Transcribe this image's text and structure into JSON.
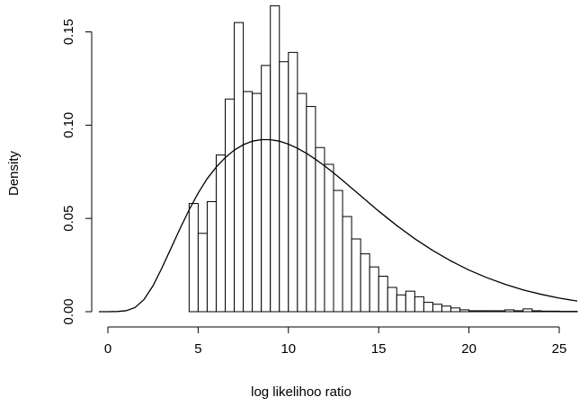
{
  "chart_data": {
    "type": "bar",
    "title": "",
    "xlabel": "log likelihoo ratio",
    "ylabel": "Density",
    "xlim": [
      -1,
      26
    ],
    "ylim": [
      0,
      0.16
    ],
    "xticks": [
      0,
      5,
      10,
      15,
      20,
      25
    ],
    "yticks": [
      0.0,
      0.05,
      0.1,
      0.15
    ],
    "ytick_labels": [
      "0.00",
      "0.05",
      "0.10",
      "0.15"
    ],
    "grid": false,
    "histogram": {
      "bin_width": 0.5,
      "bins_start": [
        4.5,
        5.0,
        5.5,
        6.0,
        6.5,
        7.0,
        7.5,
        8.0,
        8.5,
        9.0,
        9.5,
        10.0,
        10.5,
        11.0,
        11.5,
        12.0,
        12.5,
        13.0,
        13.5,
        14.0,
        14.5,
        15.0,
        15.5,
        16.0,
        16.5,
        17.0,
        17.5,
        18.0,
        18.5,
        19.0,
        19.5,
        20.0,
        20.5,
        21.0,
        21.5,
        22.0,
        22.5,
        23.0,
        23.5,
        24.0,
        24.5,
        25.0,
        25.5
      ],
      "density": [
        0.058,
        0.042,
        0.059,
        0.084,
        0.114,
        0.155,
        0.118,
        0.117,
        0.132,
        0.164,
        0.134,
        0.139,
        0.117,
        0.11,
        0.088,
        0.079,
        0.065,
        0.051,
        0.039,
        0.031,
        0.024,
        0.019,
        0.013,
        0.009,
        0.011,
        0.008,
        0.005,
        0.004,
        0.003,
        0.002,
        0.001,
        0.0005,
        0.0005,
        0.0005,
        0.0005,
        0.001,
        0.0005,
        0.0015,
        0.0005,
        0.0003,
        0.0003,
        0.0002,
        0.0002
      ]
    },
    "curve": {
      "x": [
        -0.5,
        0,
        0.5,
        1,
        1.5,
        2,
        2.5,
        3,
        3.5,
        4,
        4.5,
        5,
        5.5,
        6,
        6.5,
        7,
        7.5,
        8,
        8.5,
        9,
        9.5,
        10,
        10.5,
        11,
        11.5,
        12,
        12.5,
        13,
        13.5,
        14,
        14.5,
        15,
        16,
        17,
        18,
        19,
        20,
        21,
        22,
        23,
        24,
        25,
        26
      ],
      "y": [
        0.0,
        0.0,
        0.0001,
        0.0005,
        0.0022,
        0.0065,
        0.0139,
        0.0236,
        0.0341,
        0.0446,
        0.0546,
        0.0636,
        0.0713,
        0.0775,
        0.0826,
        0.0866,
        0.0895,
        0.0914,
        0.0922,
        0.0922,
        0.0914,
        0.0898,
        0.0876,
        0.0849,
        0.0817,
        0.0782,
        0.0744,
        0.0704,
        0.0663,
        0.0622,
        0.058,
        0.0539,
        0.0462,
        0.0391,
        0.0328,
        0.0272,
        0.0223,
        0.0182,
        0.0147,
        0.0117,
        0.0093,
        0.0073,
        0.0057
      ]
    }
  }
}
